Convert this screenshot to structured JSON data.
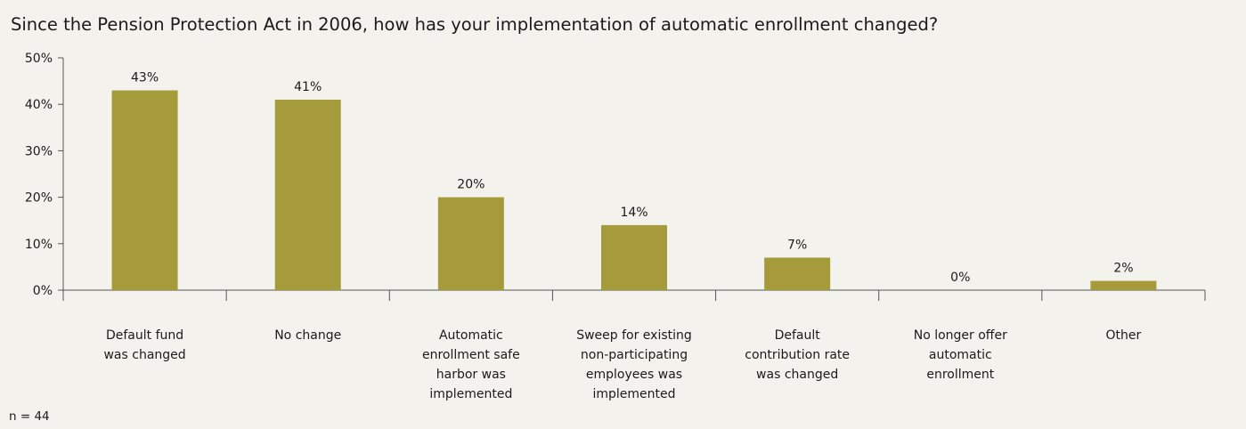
{
  "chart_data": {
    "type": "bar",
    "title": "Since the Pension Protection Act in 2006, how has your implementation of automatic enrollment changed?",
    "categories": [
      [
        "Default fund",
        "was changed"
      ],
      [
        "No change"
      ],
      [
        "Automatic",
        "enrollment safe",
        "harbor was",
        "implemented"
      ],
      [
        "Sweep for existing",
        "non-participating",
        "employees was",
        "implemented"
      ],
      [
        "Default",
        "contribution rate",
        "was changed"
      ],
      [
        "No longer offer",
        "automatic",
        "enrollment"
      ],
      [
        "Other"
      ]
    ],
    "values": [
      43,
      41,
      20,
      14,
      7,
      0,
      2
    ],
    "data_labels": [
      "43%",
      "41%",
      "20%",
      "14%",
      "7%",
      "0%",
      "2%"
    ],
    "yticks": [
      0,
      10,
      20,
      30,
      40,
      50
    ],
    "ytick_labels": [
      "0%",
      "10%",
      "20%",
      "30%",
      "40%",
      "50%"
    ],
    "ylim": [
      0,
      50
    ],
    "xlabel": "",
    "ylabel": "",
    "grid": false,
    "bar_color": "#a69b3a",
    "footnote": "n = 44"
  }
}
